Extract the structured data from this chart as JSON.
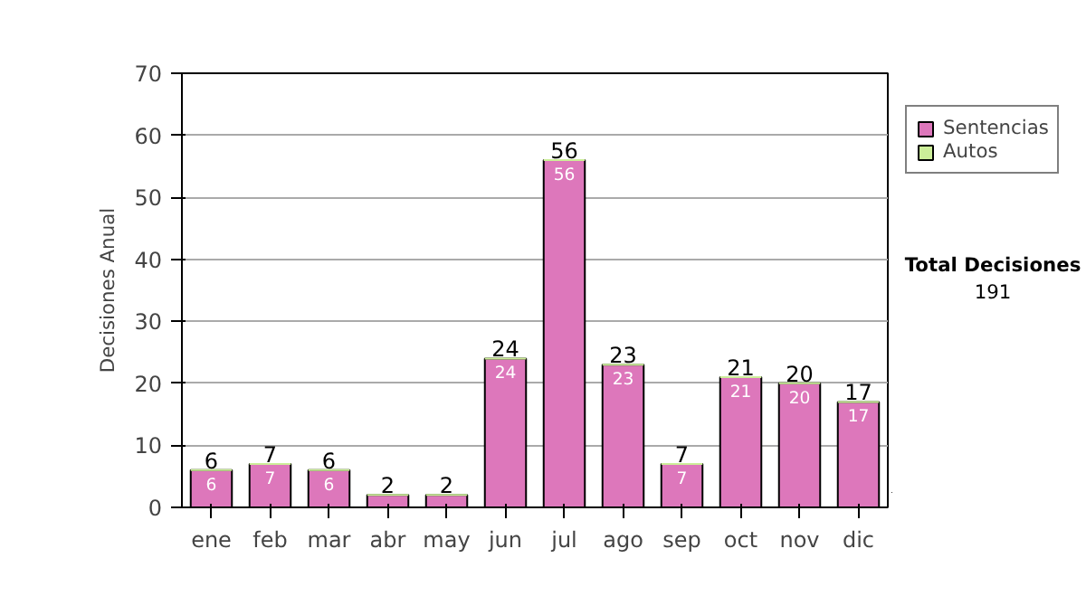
{
  "chart_data": {
    "type": "bar",
    "stacked": true,
    "ylabel": "Decisiones Anual",
    "categories": [
      "ene",
      "feb",
      "mar",
      "abr",
      "may",
      "jun",
      "jul",
      "ago",
      "sep",
      "oct",
      "nov",
      "dic"
    ],
    "series": [
      {
        "name": "Sentencias",
        "color": "#dd77bb",
        "values": [
          6,
          7,
          6,
          2,
          2,
          24,
          56,
          23,
          7,
          21,
          20,
          17
        ],
        "value_labels": [
          "6",
          "7",
          "6",
          null,
          null,
          "24",
          "56",
          "23",
          "7",
          "21",
          "20",
          "17"
        ]
      },
      {
        "name": "Autos",
        "color": "#ccee99",
        "values": [
          0,
          0,
          0,
          0,
          0,
          0,
          0,
          0,
          0,
          0,
          0,
          0
        ]
      }
    ],
    "totals": [
      "6",
      "7",
      "6",
      "2",
      "2",
      "24",
      "56",
      "23",
      "7",
      "21",
      "20",
      "17"
    ],
    "ylim": [
      0,
      70
    ],
    "yticks": [
      0,
      10,
      20,
      30,
      40,
      50,
      60,
      70
    ],
    "grid": "y",
    "legend": "right",
    "annotations": [
      "Total Decisiones",
      "191"
    ]
  }
}
